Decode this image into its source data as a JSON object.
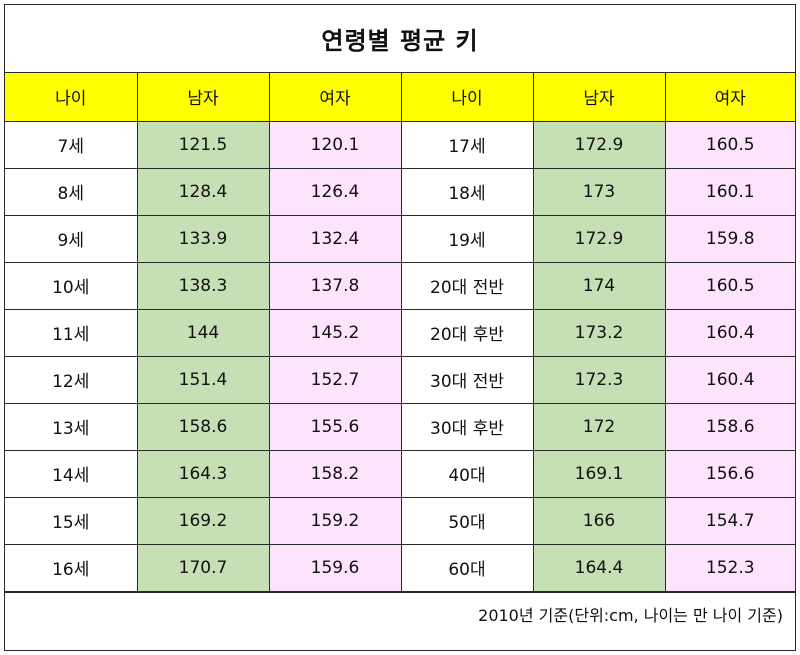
{
  "title": "연령별 평균 키",
  "headers": [
    "나이",
    "남자",
    "여자",
    "나이",
    "남자",
    "여자"
  ],
  "colors": {
    "header_bg": "#ffff00",
    "male_bg": "#c7dfb5",
    "female_bg": "#fde3fb"
  },
  "rows": [
    {
      "age1": "7세",
      "male1": "121.5",
      "female1": "120.1",
      "age2": "17세",
      "male2": "172.9",
      "female2": "160.5"
    },
    {
      "age1": "8세",
      "male1": "128.4",
      "female1": "126.4",
      "age2": "18세",
      "male2": "173",
      "female2": "160.1"
    },
    {
      "age1": "9세",
      "male1": "133.9",
      "female1": "132.4",
      "age2": "19세",
      "male2": "172.9",
      "female2": "159.8"
    },
    {
      "age1": "10세",
      "male1": "138.3",
      "female1": "137.8",
      "age2": "20대 전반",
      "male2": "174",
      "female2": "160.5"
    },
    {
      "age1": "11세",
      "male1": "144",
      "female1": "145.2",
      "age2": "20대 후반",
      "male2": "173.2",
      "female2": "160.4"
    },
    {
      "age1": "12세",
      "male1": "151.4",
      "female1": "152.7",
      "age2": "30대 전반",
      "male2": "172.3",
      "female2": "160.4"
    },
    {
      "age1": "13세",
      "male1": "158.6",
      "female1": "155.6",
      "age2": "30대 후반",
      "male2": "172",
      "female2": "158.6"
    },
    {
      "age1": "14세",
      "male1": "164.3",
      "female1": "158.2",
      "age2": "40대",
      "male2": "169.1",
      "female2": "156.6"
    },
    {
      "age1": "15세",
      "male1": "169.2",
      "female1": "159.2",
      "age2": "50대",
      "male2": "166",
      "female2": "154.7"
    },
    {
      "age1": "16세",
      "male1": "170.7",
      "female1": "159.6",
      "age2": "60대",
      "male2": "164.4",
      "female2": "152.3"
    }
  ],
  "footnote": "2010년 기준(단위:cm, 나이는 만 나이 기준)"
}
